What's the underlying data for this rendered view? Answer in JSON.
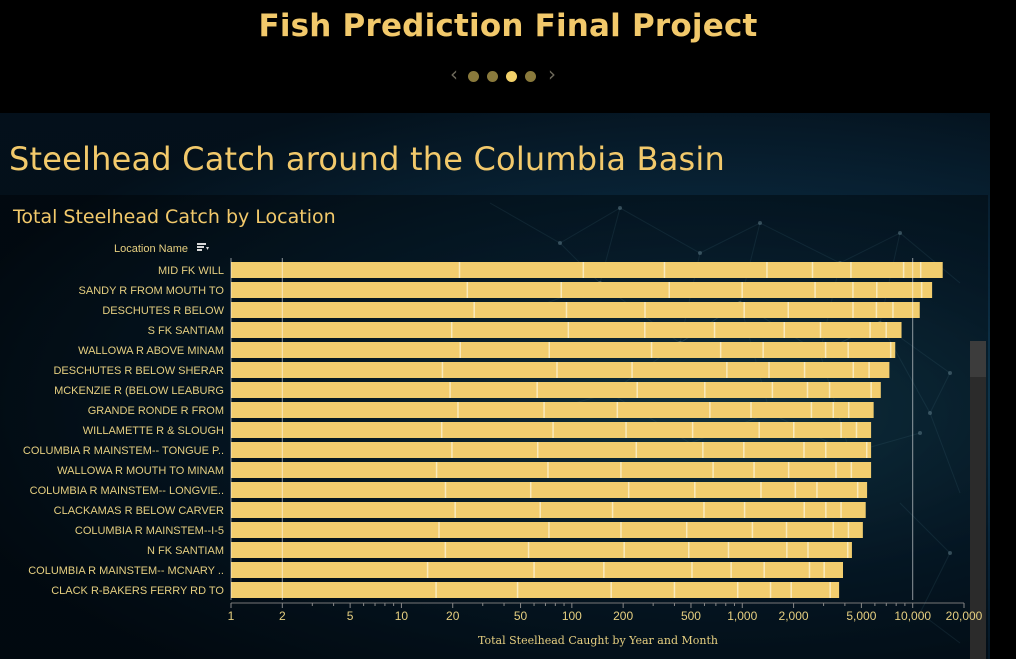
{
  "header": {
    "title": "Fish Prediction Final Project"
  },
  "carousel": {
    "dots": 4,
    "active_index": 2
  },
  "dashboard": {
    "title": "Steelhead Catch around the Columbia Basin"
  },
  "colors": {
    "bar": "#f2cd6e",
    "bar_segment": "#fbefc8",
    "text": "#f2c96b",
    "background": "#000000"
  },
  "chart_data": {
    "type": "bar",
    "orientation": "horizontal",
    "title": "Total Steelhead Catch by Location",
    "y_header": "Location Name",
    "xlabel": "Total Steelhead Caught by Year and Month",
    "x_scale": "log",
    "xlim": [
      1,
      20000
    ],
    "x_ticks": [
      1,
      2,
      5,
      10,
      20,
      50,
      100,
      200,
      500,
      1000,
      2000,
      5000,
      10000,
      20000
    ],
    "x_tick_labels": [
      "1",
      "2",
      "5",
      "10",
      "20",
      "50",
      "100",
      "200",
      "500",
      "1,000",
      "2,000",
      "5,000",
      "10,000",
      "20,000"
    ],
    "categories": [
      "MID FK WILL",
      "SANDY R FROM MOUTH TO",
      "DESCHUTES R BELOW",
      "S FK SANTIAM",
      "WALLOWA R ABOVE MINAM",
      "DESCHUTES R BELOW SHERAR",
      "MCKENZIE R (BELOW LEABURG",
      "GRANDE RONDE R FROM",
      "WILLAMETTE R & SLOUGH",
      "COLUMBIA R MAINSTEM-- TONGUE P..",
      "WALLOWA R MOUTH TO MINAM",
      "COLUMBIA R MAINSTEM-- LONGVIE..",
      "CLACKAMAS R BELOW CARVER",
      "COLUMBIA R MAINSTEM--I-5",
      "N FK SANTIAM",
      "COLUMBIA R MAINSTEM-- MCNARY ..",
      "CLACK R-BAKERS FERRY RD TO"
    ],
    "values": [
      15000,
      13000,
      11000,
      8600,
      7900,
      7300,
      6500,
      5900,
      5700,
      5700,
      5700,
      5400,
      5300,
      5100,
      4400,
      3900,
      3700
    ],
    "grid": false,
    "legend": "none"
  }
}
